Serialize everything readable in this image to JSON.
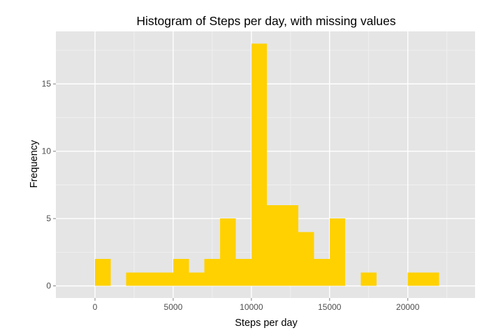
{
  "chart_data": {
    "type": "bar",
    "title": "Histogram of Steps per day, with missing values",
    "xlabel": "Steps per day",
    "ylabel": "Frequency",
    "xlim": [
      -2500,
      24300
    ],
    "ylim": [
      -0.9,
      18.9
    ],
    "x_ticks": [
      0,
      5000,
      10000,
      15000,
      20000
    ],
    "x_tick_labels": [
      "0",
      "5000",
      "10000",
      "15000",
      "20000"
    ],
    "y_ticks": [
      0,
      5,
      10,
      15
    ],
    "y_tick_labels": [
      "0",
      "5",
      "10",
      "15"
    ],
    "grid": true,
    "bin_width": 1000,
    "bins": [
      {
        "start": 0,
        "end": 1000,
        "count": 2
      },
      {
        "start": 1000,
        "end": 2000,
        "count": 0
      },
      {
        "start": 2000,
        "end": 3000,
        "count": 1
      },
      {
        "start": 3000,
        "end": 4000,
        "count": 1
      },
      {
        "start": 4000,
        "end": 5000,
        "count": 1
      },
      {
        "start": 5000,
        "end": 6000,
        "count": 2
      },
      {
        "start": 6000,
        "end": 7000,
        "count": 1
      },
      {
        "start": 7000,
        "end": 8000,
        "count": 2
      },
      {
        "start": 8000,
        "end": 9000,
        "count": 5
      },
      {
        "start": 9000,
        "end": 10000,
        "count": 2
      },
      {
        "start": 10000,
        "end": 11000,
        "count": 18
      },
      {
        "start": 11000,
        "end": 12000,
        "count": 6
      },
      {
        "start": 12000,
        "end": 13000,
        "count": 6
      },
      {
        "start": 13000,
        "end": 14000,
        "count": 4
      },
      {
        "start": 14000,
        "end": 15000,
        "count": 2
      },
      {
        "start": 15000,
        "end": 16000,
        "count": 5
      },
      {
        "start": 16000,
        "end": 17000,
        "count": 0
      },
      {
        "start": 17000,
        "end": 18000,
        "count": 1
      },
      {
        "start": 18000,
        "end": 19000,
        "count": 0
      },
      {
        "start": 19000,
        "end": 20000,
        "count": 0
      },
      {
        "start": 20000,
        "end": 21000,
        "count": 1
      },
      {
        "start": 21000,
        "end": 22000,
        "count": 1
      }
    ],
    "colors": {
      "bar_fill": "#ffd100",
      "panel_background": "#e5e5e5",
      "grid_major": "#ffffff",
      "grid_minor": "#f2f2f2",
      "tick_mark": "#7f7f7f"
    }
  }
}
